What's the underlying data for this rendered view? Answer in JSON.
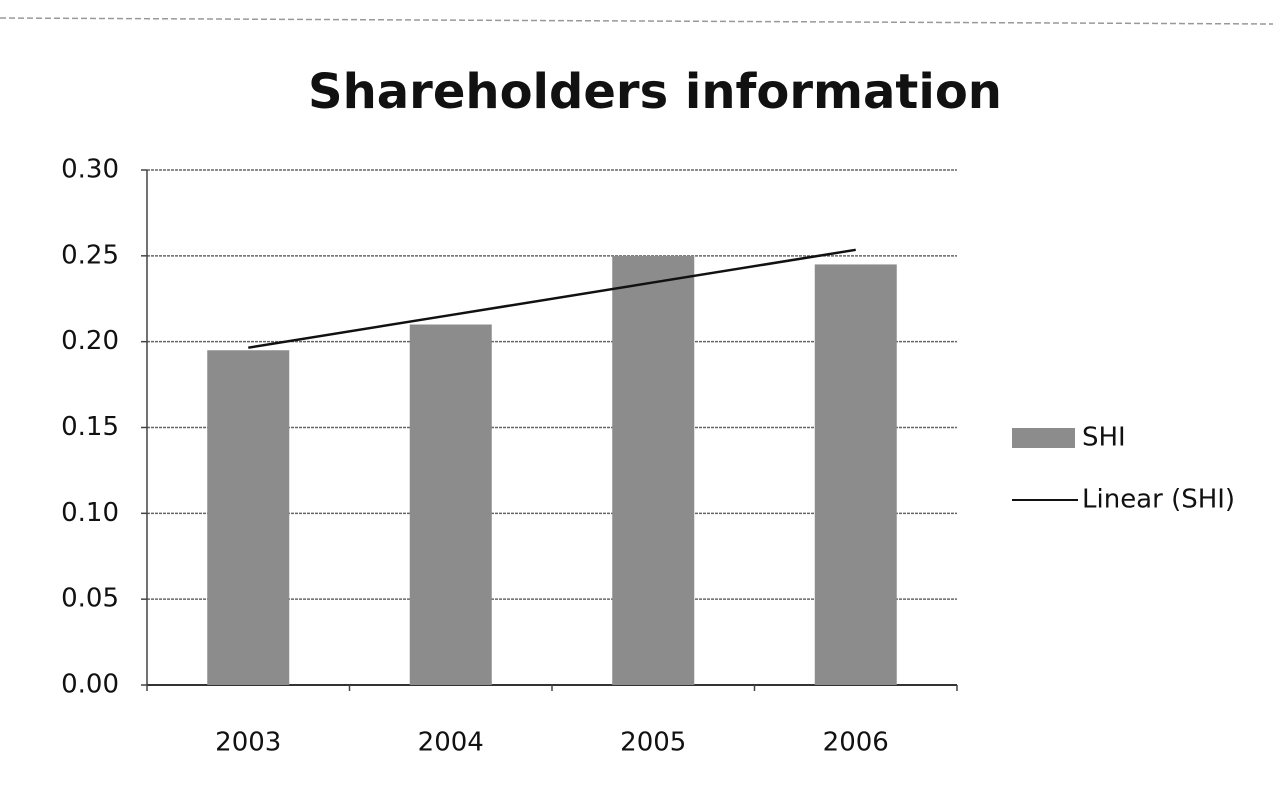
{
  "chart_data": {
    "type": "bar",
    "title": "Shareholders information",
    "categories": [
      "2003",
      "2004",
      "2005",
      "2006"
    ],
    "series": [
      {
        "name": "SHI",
        "color": "#8c8c8c",
        "values": [
          0.195,
          0.21,
          0.25,
          0.245
        ]
      },
      {
        "name": "Linear (SHI)",
        "type": "line",
        "color": "#111111",
        "values": [
          0.1965,
          0.2155,
          0.2345,
          0.2535
        ]
      }
    ],
    "ylim": [
      0,
      0.3
    ],
    "yticks": [
      {
        "value": 0,
        "label": "0.00"
      },
      {
        "value": 0.05,
        "label": "0.05"
      },
      {
        "value": 0.1,
        "label": "0.10"
      },
      {
        "value": 0.15,
        "label": "0.15"
      },
      {
        "value": 0.2,
        "label": "0.20"
      },
      {
        "value": 0.25,
        "label": "0.25"
      },
      {
        "value": 0.3,
        "label": "0.30"
      }
    ],
    "grid": true,
    "legend": "right"
  }
}
